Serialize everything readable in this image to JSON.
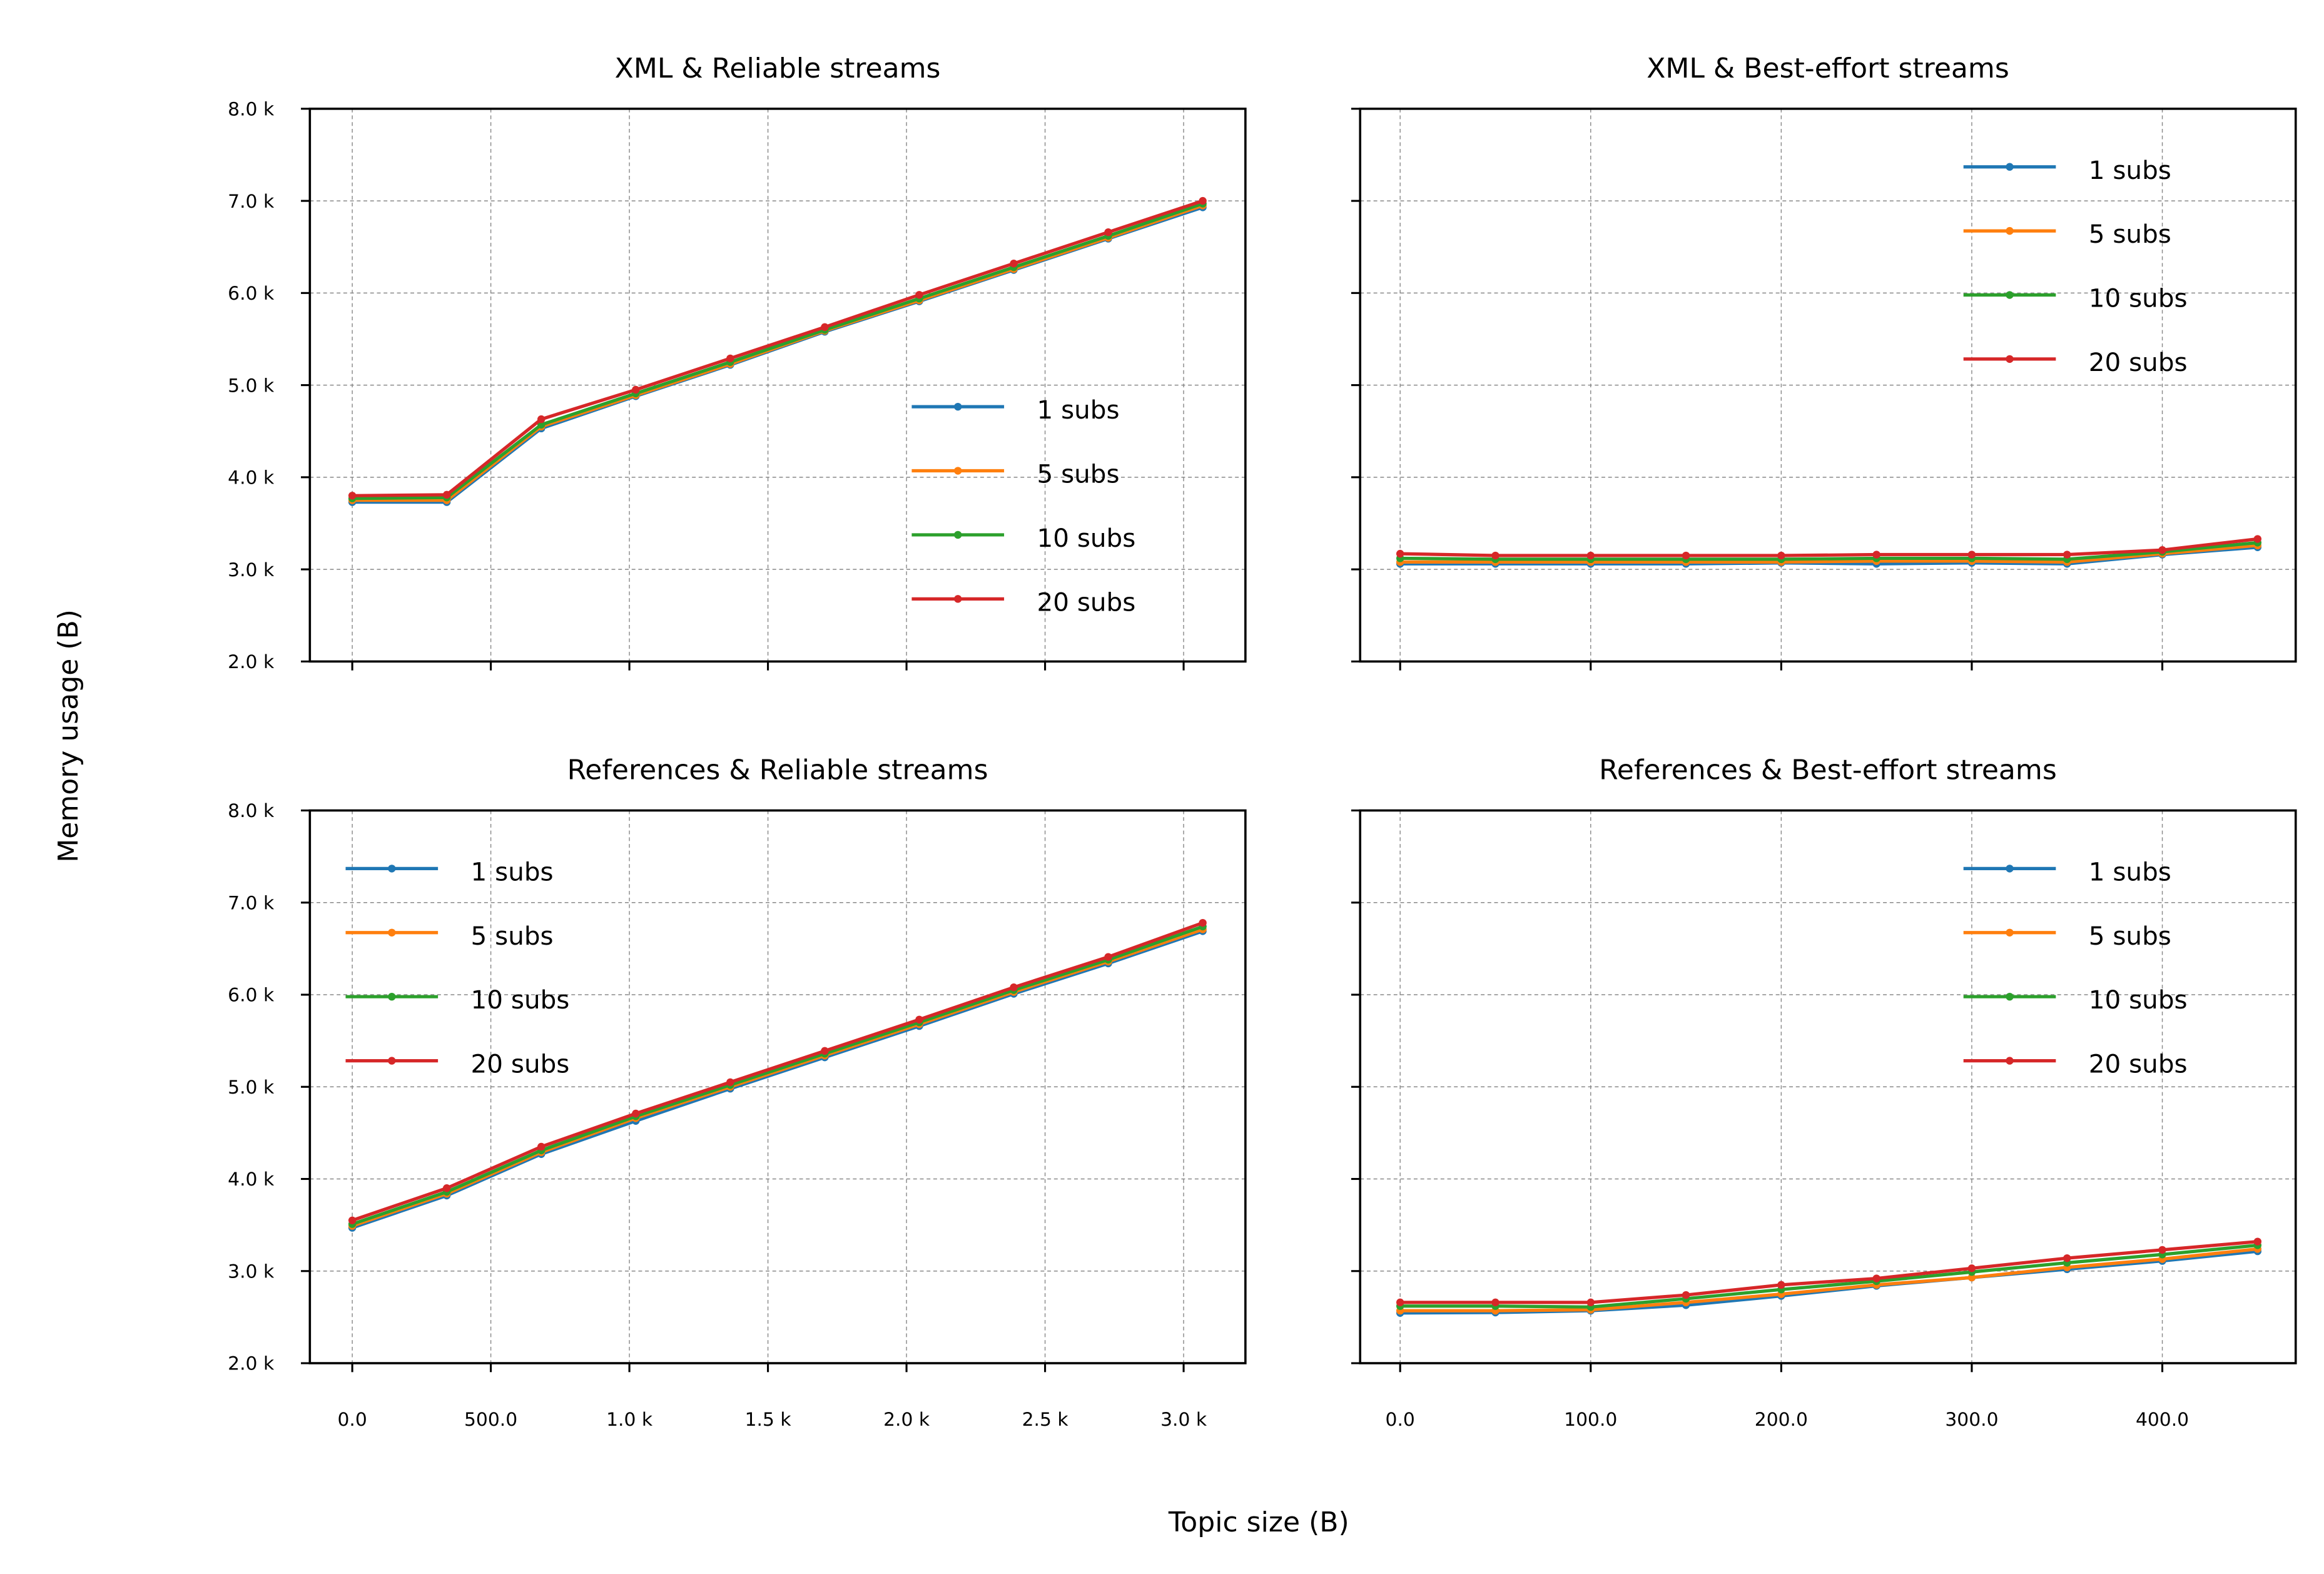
{
  "figure": {
    "xlabel": "Topic size (B)",
    "ylabel": "Memory usage (B)"
  },
  "colors": {
    "1 subs": "#1f77b4",
    "5 subs": "#ff7f0e",
    "10 subs": "#2ca02c",
    "20 subs": "#d62728"
  },
  "chart_data": [
    {
      "type": "line",
      "title": "XML & Reliable streams",
      "xlim": [
        -153,
        3223
      ],
      "ylim": [
        2000,
        8000
      ],
      "xticks": [
        0,
        500,
        1000,
        1500,
        2000,
        2500,
        3000
      ],
      "xtick_labels": [
        "0.0",
        "500.0",
        "1.0 k",
        "1.5 k",
        "2.0 k",
        "2.5 k",
        "3.0 k"
      ],
      "yticks": [
        2000,
        3000,
        4000,
        5000,
        6000,
        7000,
        8000
      ],
      "ytick_labels": [
        "2.0 k",
        "3.0 k",
        "4.0 k",
        "5.0 k",
        "6.0 k",
        "7.0 k",
        "8.0 k"
      ],
      "legend": "lower-right",
      "grid": true,
      "x": [
        0,
        341,
        682,
        1023,
        1364,
        1705,
        2046,
        2387,
        2728,
        3069
      ],
      "series": [
        {
          "name": "1 subs",
          "values": [
            3730,
            3730,
            4530,
            4880,
            5220,
            5580,
            5910,
            6250,
            6590,
            6930
          ]
        },
        {
          "name": "5 subs",
          "values": [
            3750,
            3750,
            4550,
            4890,
            5230,
            5590,
            5920,
            6260,
            6600,
            6950
          ]
        },
        {
          "name": "10 subs",
          "values": [
            3770,
            3780,
            4570,
            4910,
            5250,
            5600,
            5940,
            6280,
            6620,
            6970
          ]
        },
        {
          "name": "20 subs",
          "values": [
            3800,
            3810,
            4630,
            4950,
            5290,
            5630,
            5980,
            6320,
            6660,
            7000
          ]
        }
      ]
    },
    {
      "type": "line",
      "title": "XML & Best-effort streams",
      "xlim": [
        -21,
        470
      ],
      "ylim": [
        2000,
        8000
      ],
      "xticks": [
        0,
        100,
        200,
        300,
        400
      ],
      "xtick_labels": [
        "0.0",
        "100.0",
        "200.0",
        "300.0",
        "400.0"
      ],
      "yticks": [
        2000,
        3000,
        4000,
        5000,
        6000,
        7000,
        8000
      ],
      "ytick_labels": [],
      "legend": "upper-right",
      "grid": true,
      "x": [
        0,
        50,
        100,
        150,
        200,
        250,
        300,
        350,
        400,
        450
      ],
      "series": [
        {
          "name": "1 subs",
          "values": [
            3060,
            3060,
            3060,
            3060,
            3070,
            3060,
            3070,
            3060,
            3160,
            3240
          ]
        },
        {
          "name": "5 subs",
          "values": [
            3080,
            3080,
            3080,
            3080,
            3080,
            3090,
            3090,
            3080,
            3170,
            3260
          ]
        },
        {
          "name": "10 subs",
          "values": [
            3120,
            3110,
            3110,
            3110,
            3110,
            3120,
            3120,
            3110,
            3190,
            3290
          ]
        },
        {
          "name": "20 subs",
          "values": [
            3170,
            3150,
            3150,
            3150,
            3150,
            3160,
            3160,
            3160,
            3210,
            3330
          ]
        }
      ]
    },
    {
      "type": "line",
      "title": "References & Reliable streams",
      "xlim": [
        -153,
        3223
      ],
      "ylim": [
        2000,
        8000
      ],
      "xticks": [
        0,
        500,
        1000,
        1500,
        2000,
        2500,
        3000
      ],
      "xtick_labels": [
        "0.0",
        "500.0",
        "1.0 k",
        "1.5 k",
        "2.0 k",
        "2.5 k",
        "3.0 k"
      ],
      "yticks": [
        2000,
        3000,
        4000,
        5000,
        6000,
        7000,
        8000
      ],
      "ytick_labels": [
        "2.0 k",
        "3.0 k",
        "4.0 k",
        "5.0 k",
        "6.0 k",
        "7.0 k",
        "8.0 k"
      ],
      "legend": "upper-left",
      "grid": true,
      "x": [
        0,
        341,
        682,
        1023,
        1364,
        1705,
        2046,
        2387,
        2728,
        3069
      ],
      "series": [
        {
          "name": "1 subs",
          "values": [
            3470,
            3820,
            4270,
            4630,
            4980,
            5320,
            5660,
            6010,
            6340,
            6690
          ]
        },
        {
          "name": "5 subs",
          "values": [
            3490,
            3840,
            4290,
            4660,
            5000,
            5340,
            5680,
            6030,
            6360,
            6710
          ]
        },
        {
          "name": "10 subs",
          "values": [
            3510,
            3860,
            4310,
            4680,
            5020,
            5360,
            5700,
            6050,
            6380,
            6740
          ]
        },
        {
          "name": "20 subs",
          "values": [
            3550,
            3900,
            4350,
            4710,
            5050,
            5390,
            5730,
            6080,
            6410,
            6780
          ]
        }
      ]
    },
    {
      "type": "line",
      "title": "References & Best-effort streams",
      "xlim": [
        -21,
        470
      ],
      "ylim": [
        2000,
        8000
      ],
      "xticks": [
        0,
        100,
        200,
        300,
        400
      ],
      "xtick_labels": [
        "0.0",
        "100.0",
        "200.0",
        "300.0",
        "400.0"
      ],
      "yticks": [
        2000,
        3000,
        4000,
        5000,
        6000,
        7000,
        8000
      ],
      "ytick_labels": [],
      "legend": "upper-right",
      "grid": true,
      "x": [
        0,
        50,
        100,
        150,
        200,
        250,
        300,
        350,
        400,
        450
      ],
      "series": [
        {
          "name": "1 subs",
          "values": [
            2545,
            2550,
            2570,
            2630,
            2730,
            2840,
            2930,
            3020,
            3110,
            3215
          ]
        },
        {
          "name": "5 subs",
          "values": [
            2570,
            2570,
            2580,
            2660,
            2750,
            2850,
            2930,
            3040,
            3130,
            3240
          ]
        },
        {
          "name": "10 subs",
          "values": [
            2620,
            2620,
            2610,
            2700,
            2800,
            2890,
            2990,
            3090,
            3180,
            3280
          ]
        },
        {
          "name": "20 subs",
          "values": [
            2660,
            2660,
            2660,
            2740,
            2850,
            2920,
            3030,
            3140,
            3230,
            3320
          ]
        }
      ]
    }
  ]
}
